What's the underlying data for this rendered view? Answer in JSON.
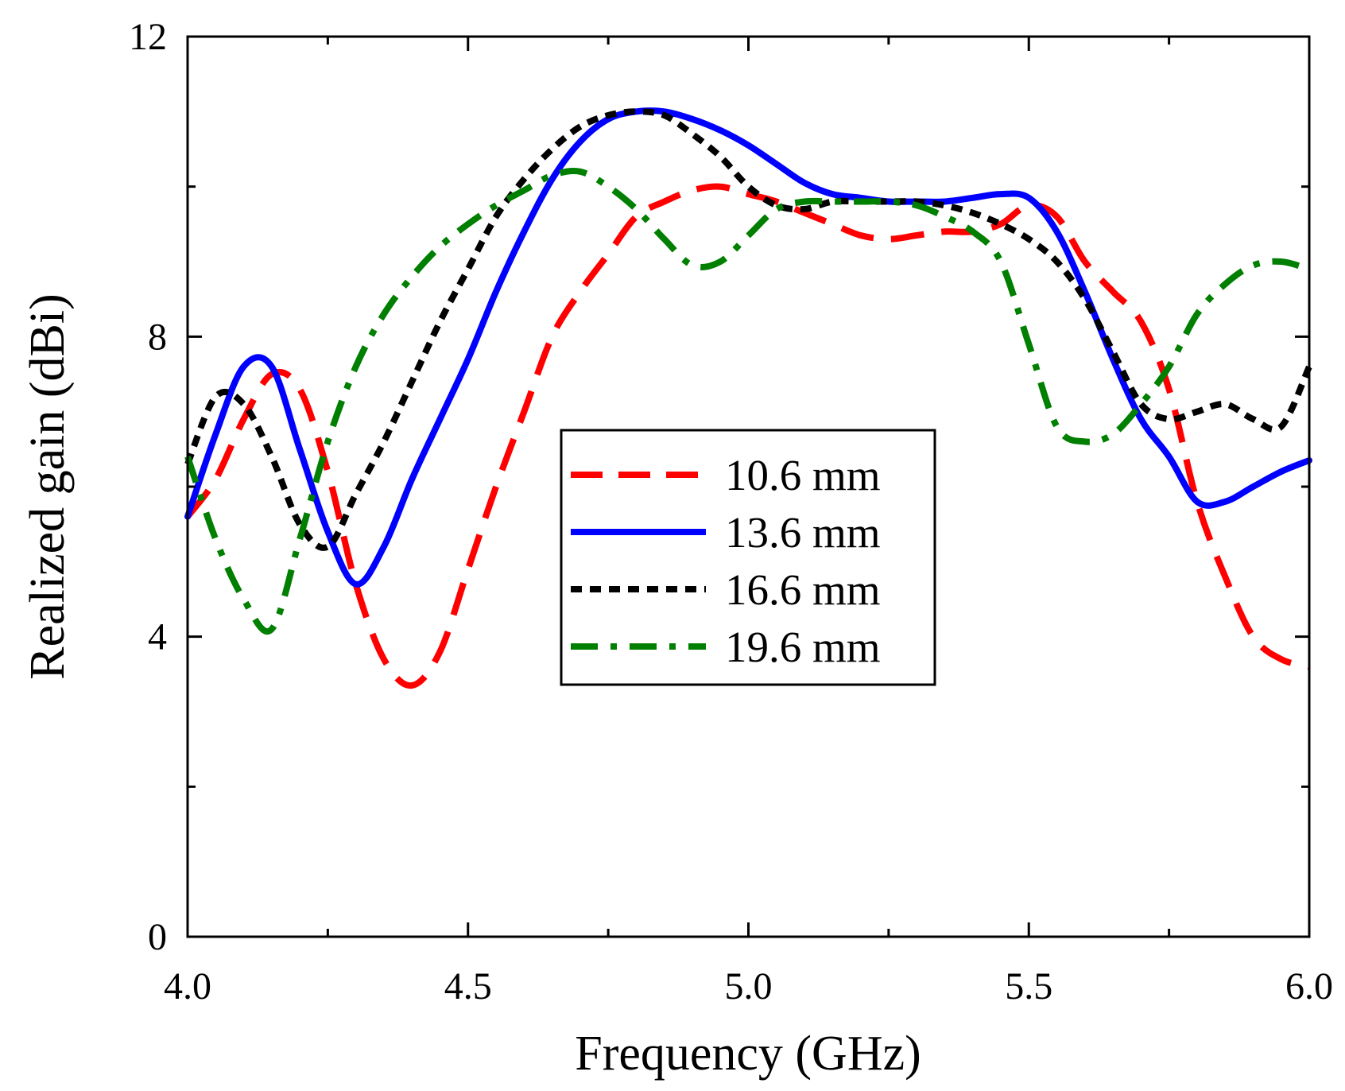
{
  "chart_data": {
    "type": "line",
    "title": "",
    "xlabel": "Frequency (GHz)",
    "ylabel": "Realized gain (dBi)",
    "xlim": [
      4.0,
      6.0
    ],
    "ylim": [
      0,
      12
    ],
    "xticks": [
      4.0,
      4.5,
      5.0,
      5.5,
      6.0
    ],
    "xtick_labels": [
      "4.0",
      "4.5",
      "5.0",
      "5.5",
      "6.0"
    ],
    "xminor": [
      4.25,
      4.75,
      5.25,
      5.75
    ],
    "yticks": [
      0,
      4,
      8,
      12
    ],
    "ytick_labels": [
      "0",
      "4",
      "8",
      "12"
    ],
    "yminor": [
      2,
      6,
      10
    ],
    "grid": false,
    "legend_position": "center",
    "series": [
      {
        "name": "10.6 mm",
        "color": "#ff0000",
        "dash": "dashed",
        "x": [
          4.0,
          4.05,
          4.1,
          4.15,
          4.2,
          4.25,
          4.3,
          4.35,
          4.4,
          4.45,
          4.5,
          4.55,
          4.6,
          4.65,
          4.7,
          4.75,
          4.8,
          4.85,
          4.9,
          4.95,
          5.0,
          5.05,
          5.1,
          5.15,
          5.2,
          5.25,
          5.3,
          5.35,
          5.4,
          5.45,
          5.5,
          5.55,
          5.6,
          5.65,
          5.7,
          5.75,
          5.8,
          5.85,
          5.9,
          5.95,
          6.0
        ],
        "y": [
          5.6,
          6.1,
          6.9,
          7.5,
          7.3,
          6.2,
          4.7,
          3.7,
          3.35,
          3.8,
          4.9,
          6.0,
          7.0,
          8.0,
          8.6,
          9.1,
          9.6,
          9.8,
          9.95,
          10.0,
          9.9,
          9.8,
          9.65,
          9.5,
          9.35,
          9.3,
          9.35,
          9.4,
          9.4,
          9.5,
          9.75,
          9.6,
          9.0,
          8.6,
          8.2,
          7.3,
          5.8,
          4.8,
          4.0,
          3.7,
          3.6
        ]
      },
      {
        "name": "13.6 mm",
        "color": "#0000ff",
        "dash": "solid",
        "x": [
          4.0,
          4.05,
          4.1,
          4.15,
          4.2,
          4.25,
          4.3,
          4.35,
          4.4,
          4.45,
          4.5,
          4.55,
          4.6,
          4.65,
          4.7,
          4.75,
          4.8,
          4.85,
          4.9,
          4.95,
          5.0,
          5.05,
          5.1,
          5.15,
          5.2,
          5.25,
          5.3,
          5.35,
          5.4,
          5.45,
          5.5,
          5.55,
          5.6,
          5.65,
          5.7,
          5.75,
          5.8,
          5.85,
          5.9,
          5.95,
          6.0
        ],
        "y": [
          5.6,
          6.7,
          7.6,
          7.6,
          6.5,
          5.4,
          4.7,
          5.2,
          6.1,
          6.9,
          7.7,
          8.6,
          9.4,
          10.1,
          10.6,
          10.9,
          11.0,
          11.0,
          10.9,
          10.75,
          10.55,
          10.3,
          10.05,
          9.9,
          9.85,
          9.8,
          9.8,
          9.8,
          9.85,
          9.9,
          9.85,
          9.4,
          8.6,
          7.7,
          6.9,
          6.4,
          5.8,
          5.8,
          6.0,
          6.2,
          6.35
        ]
      },
      {
        "name": "16.6 mm",
        "color": "#000000",
        "dash": "dotted",
        "x": [
          4.0,
          4.05,
          4.1,
          4.15,
          4.2,
          4.25,
          4.3,
          4.35,
          4.4,
          4.45,
          4.5,
          4.55,
          4.6,
          4.65,
          4.7,
          4.75,
          4.8,
          4.85,
          4.9,
          4.95,
          5.0,
          5.05,
          5.1,
          5.15,
          5.2,
          5.25,
          5.3,
          5.35,
          5.4,
          5.45,
          5.5,
          5.55,
          5.6,
          5.65,
          5.7,
          5.75,
          5.8,
          5.85,
          5.9,
          5.95,
          6.0
        ],
        "y": [
          6.3,
          7.2,
          7.1,
          6.4,
          5.5,
          5.2,
          5.9,
          6.6,
          7.4,
          8.2,
          8.9,
          9.6,
          10.1,
          10.5,
          10.8,
          10.95,
          11.0,
          10.95,
          10.7,
          10.4,
          10.0,
          9.75,
          9.7,
          9.8,
          9.8,
          9.8,
          9.8,
          9.75,
          9.65,
          9.5,
          9.3,
          9.0,
          8.5,
          7.8,
          7.1,
          6.9,
          7.0,
          7.1,
          6.9,
          6.8,
          7.6
        ]
      },
      {
        "name": "19.6 mm",
        "color": "#007f00",
        "dash": "dashdot",
        "x": [
          4.0,
          4.05,
          4.1,
          4.15,
          4.2,
          4.25,
          4.3,
          4.35,
          4.4,
          4.45,
          4.5,
          4.55,
          4.6,
          4.65,
          4.7,
          4.75,
          4.8,
          4.85,
          4.9,
          4.95,
          5.0,
          5.05,
          5.1,
          5.15,
          5.2,
          5.25,
          5.3,
          5.35,
          5.4,
          5.45,
          5.5,
          5.55,
          5.6,
          5.65,
          5.7,
          5.75,
          5.8,
          5.85,
          5.9,
          5.95,
          6.0
        ],
        "y": [
          6.4,
          5.3,
          4.5,
          4.1,
          5.3,
          6.6,
          7.6,
          8.3,
          8.8,
          9.2,
          9.5,
          9.75,
          9.95,
          10.15,
          10.2,
          10.0,
          9.7,
          9.3,
          8.95,
          9.0,
          9.35,
          9.7,
          9.8,
          9.8,
          9.8,
          9.8,
          9.75,
          9.6,
          9.4,
          9.0,
          7.9,
          6.8,
          6.6,
          6.7,
          7.1,
          7.6,
          8.3,
          8.7,
          8.95,
          9.0,
          8.9
        ]
      }
    ]
  }
}
